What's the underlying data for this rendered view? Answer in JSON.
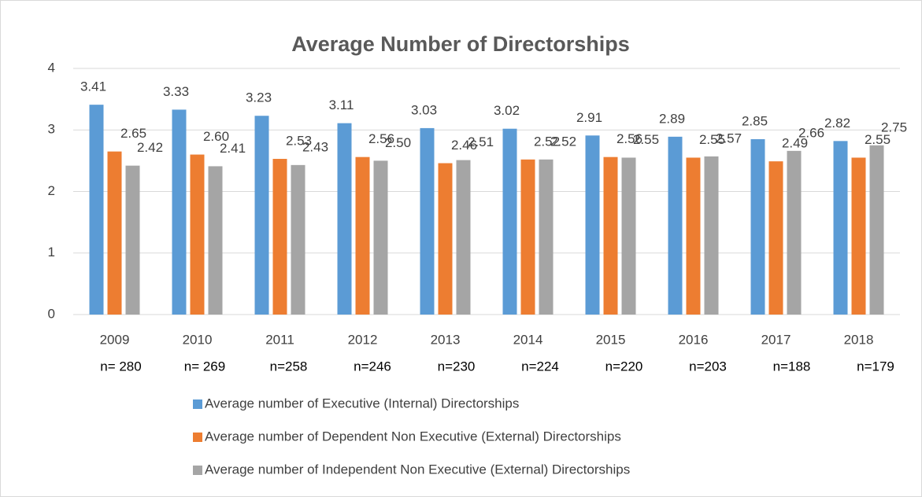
{
  "chart_data": {
    "type": "bar",
    "title": "Average Number of Directorships",
    "categories": [
      "2009",
      "2010",
      "2011",
      "2012",
      "2013",
      "2014",
      "2015",
      "2016",
      "2017",
      "2018"
    ],
    "sample_sizes": [
      "n= 280",
      "n= 269",
      "n=258",
      "n=246",
      "n=230",
      "n=224",
      "n=220",
      "n=203",
      "n=188",
      "n=179"
    ],
    "series": [
      {
        "name": "Average number of Executive (Internal) Directorships",
        "color": "#5b9bd5",
        "values": [
          3.41,
          3.33,
          3.23,
          3.11,
          3.03,
          3.02,
          2.91,
          2.89,
          2.85,
          2.82
        ],
        "value_labels": [
          "3.41",
          "3.33",
          "3.23",
          "3.11",
          "3.03",
          "3.02",
          "2.91",
          "2.89",
          "2.85",
          "2.82"
        ]
      },
      {
        "name": "Average number of Dependent Non Executive (External) Directorships",
        "color": "#ed7d31",
        "values": [
          2.65,
          2.6,
          2.53,
          2.56,
          2.46,
          2.52,
          2.56,
          2.55,
          2.49,
          2.55
        ],
        "value_labels": [
          "2.65",
          "2.60",
          "2.53",
          "2.56",
          "2.46",
          "2.52",
          "2.56",
          "2.55",
          "2.49",
          "2.55"
        ]
      },
      {
        "name": "Average number of Independent Non Executive (External) Directorships",
        "color": "#a5a5a5",
        "values": [
          2.42,
          2.41,
          2.43,
          2.5,
          2.51,
          2.52,
          2.55,
          2.57,
          2.66,
          2.75
        ],
        "value_labels": [
          "2.42",
          "2.41",
          "2.43",
          "2.50",
          "2.51",
          "2.52",
          "2.55",
          "2.57",
          "2.66",
          "2.75"
        ]
      }
    ],
    "ylim": [
      0,
      4
    ],
    "yticks": [
      0,
      1,
      2,
      3,
      4
    ],
    "grid": true,
    "legend": "bottom"
  }
}
